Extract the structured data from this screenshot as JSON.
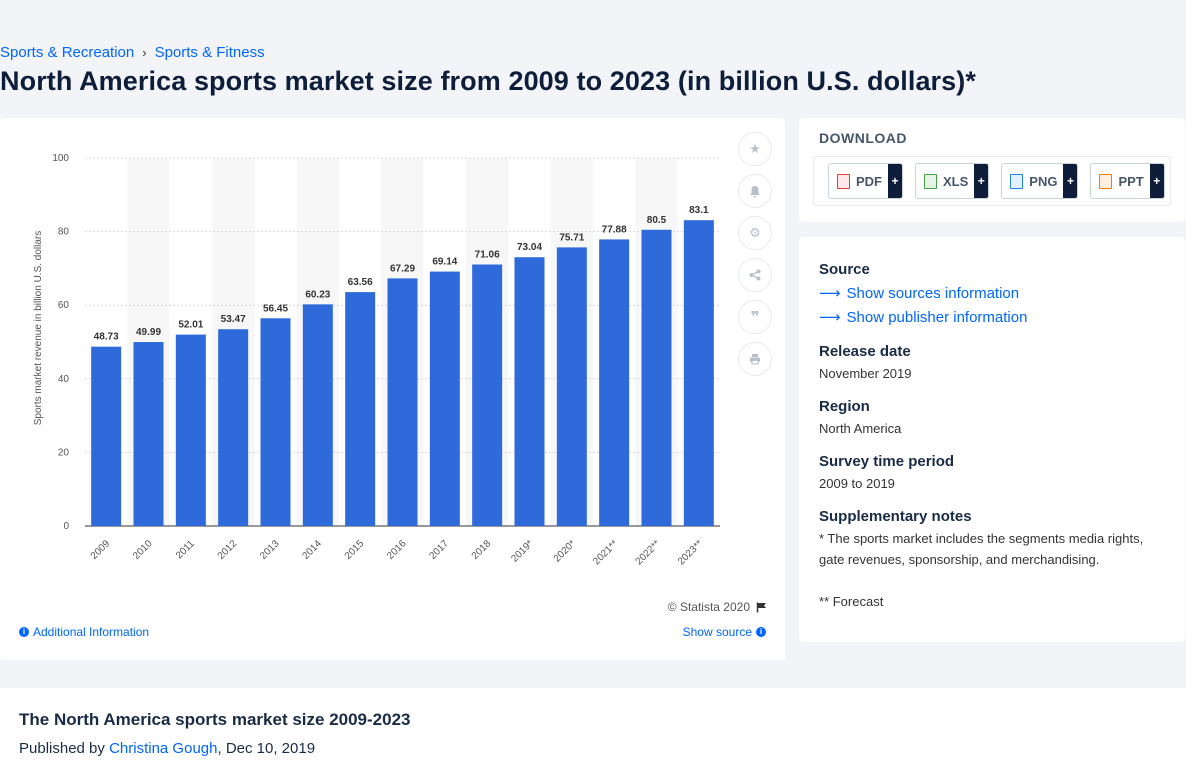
{
  "breadcrumb": {
    "item1": "Sports & Recreation",
    "separator": "›",
    "item2": "Sports & Fitness"
  },
  "page_title": "North America sports market size from 2009 to 2023 (in billion U.S. dollars)*",
  "toolbar_icons": [
    "star-icon",
    "bell-icon",
    "gear-icon",
    "share-icon",
    "quote-icon",
    "print-icon"
  ],
  "copyright": "© Statista 2020",
  "additional_info": "Additional Information",
  "show_source": "Show source",
  "download": {
    "title": "DOWNLOAD",
    "buttons": [
      {
        "label": "PDF",
        "plus": "+",
        "color": "#e53935"
      },
      {
        "label": "XLS",
        "plus": "+",
        "color": "#43a047"
      },
      {
        "label": "PNG",
        "plus": "+",
        "color": "#1e88e5"
      },
      {
        "label": "PPT",
        "plus": "+",
        "color": "#f57c00"
      }
    ]
  },
  "meta": {
    "source_heading": "Source",
    "show_sources": "Show sources information",
    "show_publisher": "Show publisher information",
    "release_heading": "Release date",
    "release_value": "November 2019",
    "region_heading": "Region",
    "region_value": "North America",
    "survey_heading": "Survey time period",
    "survey_value": "2009 to 2019",
    "notes_heading": "Supplementary notes",
    "note1": "* The sports market includes the segments media rights, gate revenues, sponsorship, and merchandising.",
    "note2": "** Forecast"
  },
  "bottom": {
    "title": "The North America sports market size 2009-2023",
    "published_by": "Published by",
    "author": "Christina Gough",
    "date": ", Dec 10, 2019"
  },
  "chart_data": {
    "type": "bar",
    "categories": [
      "2009",
      "2010",
      "2011",
      "2012",
      "2013",
      "2014",
      "2015",
      "2016",
      "2017",
      "2018",
      "2019*",
      "2020*",
      "2021**",
      "2022**",
      "2023**"
    ],
    "values": [
      48.73,
      49.99,
      52.01,
      53.47,
      56.45,
      60.23,
      63.56,
      67.29,
      69.14,
      71.06,
      73.04,
      75.71,
      77.88,
      80.5,
      83.1
    ],
    "value_labels": [
      "48.73",
      "49.99",
      "52.01",
      "53.47",
      "56.45",
      "60.23",
      "63.56",
      "67.29",
      "69.14",
      "71.06",
      "73.04",
      "75.71",
      "77.88",
      "80.5",
      "83.1"
    ],
    "ylabel": "Sports market revenue in billion U.S. dollars",
    "xlabel": "",
    "ylim": [
      0,
      100
    ],
    "yticks": [
      0,
      20,
      40,
      60,
      80,
      100
    ],
    "grid": true,
    "bar_color": "#2e6ad9"
  }
}
